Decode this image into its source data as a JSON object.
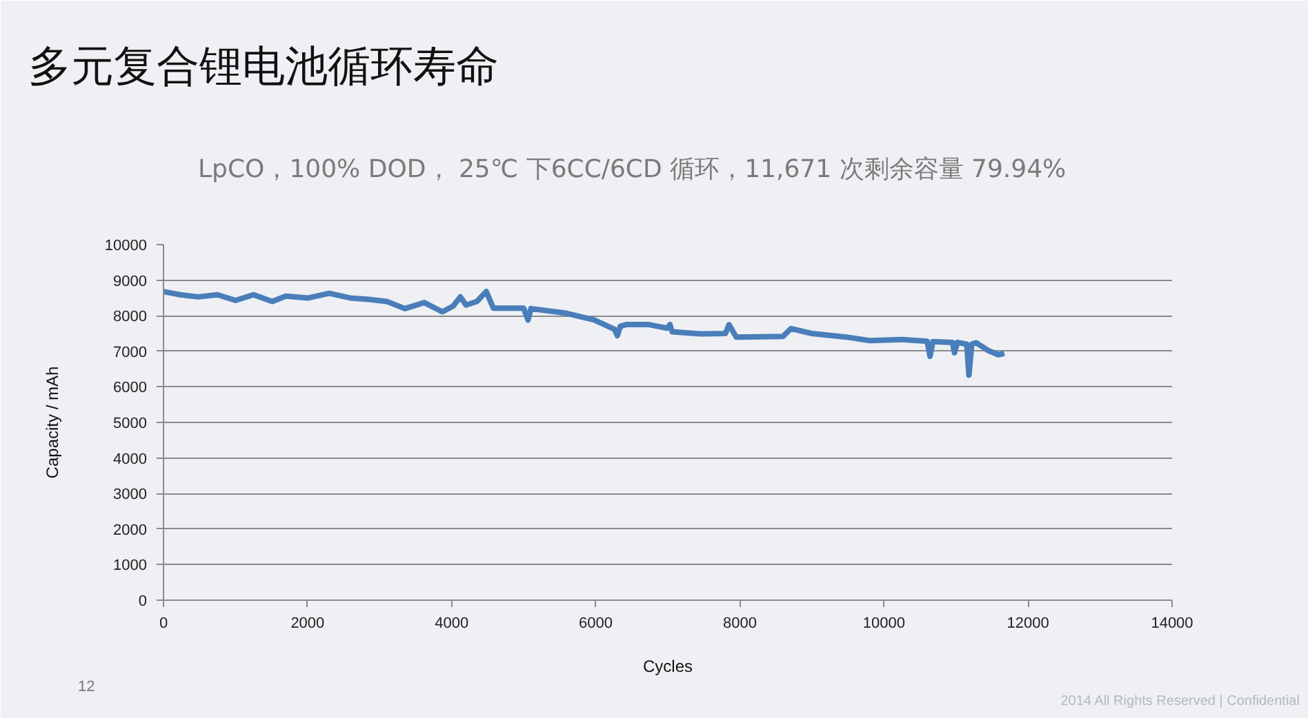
{
  "chart_data": {
    "type": "line",
    "title": "多元复合锂电池循环寿命",
    "subtitle": "LpCO，100% DOD， 25℃ 下6CC/6CD 循环，11,671 次剩余容量 79.94%",
    "xlabel": "Cycles",
    "ylabel": "Capacity / mAh",
    "annotations": [
      "12",
      "2014 All Rights Reserved | Confidential"
    ],
    "x": [
      0,
      230,
      480,
      750,
      1000,
      1250,
      1510,
      1700,
      2010,
      2300,
      2590,
      2850,
      3100,
      3350,
      3620,
      3870,
      4020,
      4120,
      4200,
      4350,
      4480,
      4580,
      5000,
      5060,
      5100,
      5590,
      5980,
      6260,
      6300,
      6340,
      6420,
      6740,
      6990,
      7030,
      7060,
      7450,
      7800,
      7850,
      7950,
      8600,
      8710,
      9000,
      9480,
      9800,
      10250,
      10600,
      10640,
      10680,
      10950,
      10980,
      11020,
      11150,
      11180,
      11220,
      11280,
      11450,
      11590,
      11671
    ],
    "series": [
      {
        "color": "#4a7ebb",
        "values": [
          8680,
          8590,
          8530,
          8590,
          8430,
          8590,
          8400,
          8550,
          8500,
          8630,
          8500,
          8460,
          8400,
          8200,
          8370,
          8110,
          8270,
          8530,
          8300,
          8400,
          8680,
          8210,
          8210,
          7880,
          8200,
          8070,
          7880,
          7620,
          7440,
          7700,
          7750,
          7750,
          7650,
          7750,
          7550,
          7490,
          7500,
          7750,
          7400,
          7420,
          7640,
          7500,
          7400,
          7300,
          7330,
          7280,
          6860,
          7270,
          7250,
          6960,
          7250,
          7200,
          6330,
          7200,
          7240,
          7020,
          6900,
          6940
        ]
      }
    ],
    "xlim": [
      0,
      14000
    ],
    "ylim": [
      0,
      10000
    ],
    "xticks": [
      0,
      2000,
      4000,
      6000,
      8000,
      10000,
      12000,
      14000
    ],
    "yticks": [
      0,
      1000,
      2000,
      3000,
      4000,
      5000,
      6000,
      7000,
      8000,
      9000,
      10000
    ],
    "grid": "y",
    "line_style": "solid"
  }
}
